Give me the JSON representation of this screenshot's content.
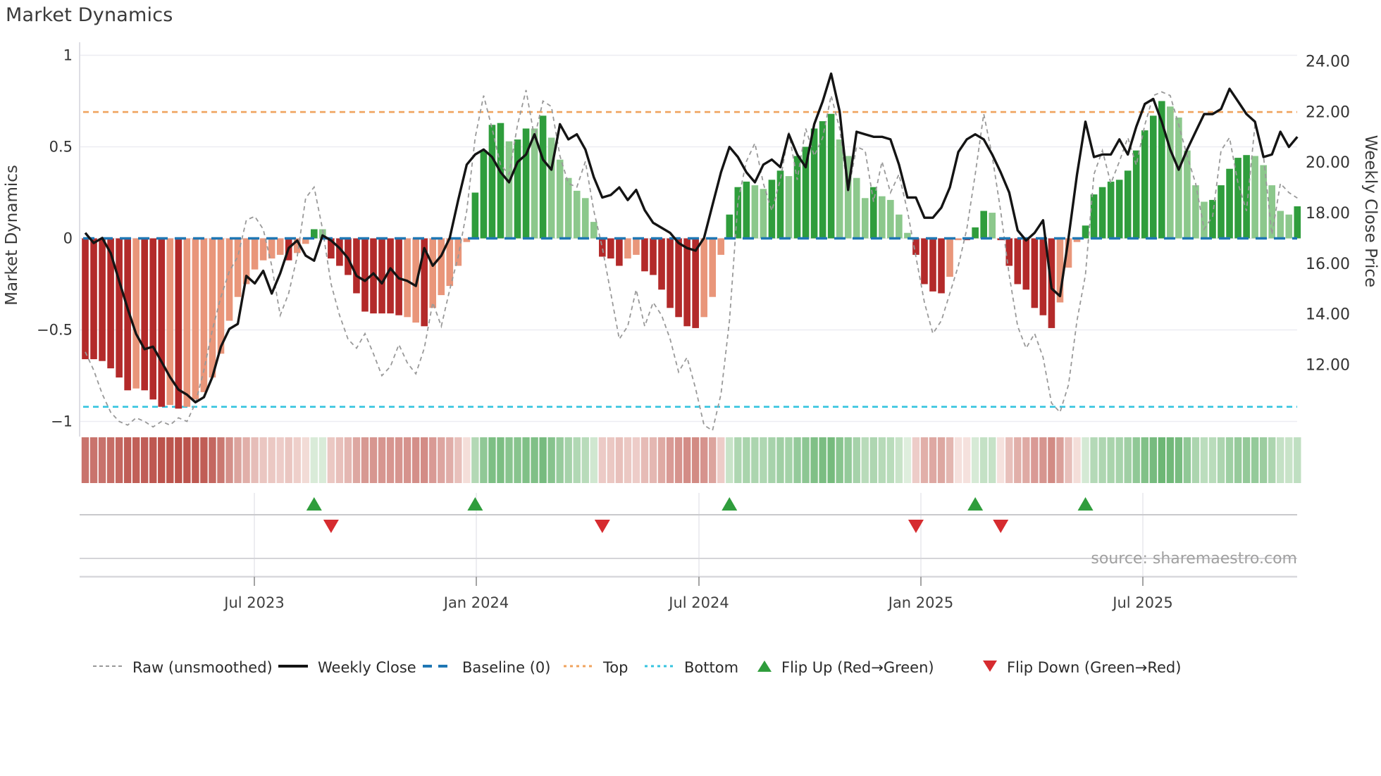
{
  "title": "Market Dynamics",
  "source": "source: sharemaestro.com",
  "axes": {
    "left": {
      "label": "Market Dynamics",
      "ticks": [
        "1",
        "0.5",
        "0",
        "−0.5",
        "−1"
      ],
      "tick_values": [
        1,
        0.5,
        0,
        -0.5,
        -1
      ]
    },
    "right": {
      "label": "Weekly Close Price",
      "ticks": [
        "24.00",
        "22.00",
        "20.00",
        "18.00",
        "16.00",
        "14.00",
        "12.00"
      ],
      "tick_values": [
        24,
        22,
        20,
        18,
        16,
        14,
        12
      ]
    },
    "x": {
      "ticks": [
        "Jul 2023",
        "Jan 2024",
        "Jul 2024",
        "Jan 2025",
        "Jul 2025"
      ]
    }
  },
  "legend": {
    "items": [
      {
        "label": "Raw (unsmoothed)",
        "marker": "dashed-gray-line"
      },
      {
        "label": "Weekly Close",
        "marker": "solid-black-line"
      },
      {
        "label": "Baseline (0)",
        "marker": "blue-dashes"
      },
      {
        "label": "Top",
        "marker": "orange-dots"
      },
      {
        "label": "Bottom",
        "marker": "cyan-dots"
      },
      {
        "label": "Flip Up (Red→Green)",
        "marker": "green-triangle-up"
      },
      {
        "label": "Flip Down (Green→Red)",
        "marker": "red-triangle-down"
      }
    ]
  },
  "colors": {
    "bar_dark_red": "#B32A2A",
    "bar_salmon": "#E9967A",
    "bar_dark_green": "#2F9D3C",
    "bar_light_green": "#8CC88C",
    "price_line": "#141414",
    "raw_line": "#999999",
    "baseline": "#1F77B4",
    "top_line": "#F0A35E",
    "bottom_line": "#35C4DF",
    "flip_up": "#2F9D3C",
    "flip_down": "#D62B2F",
    "grid": "#ECECF2",
    "panel_line": "#C9C9CC",
    "text_dark": "#3a3a3a",
    "text_tick": "#333333",
    "text_source": "#A0A0A0"
  },
  "chart_data": {
    "type": "bar",
    "title": "Market Dynamics",
    "x_label": "",
    "y_left_label": "Market Dynamics",
    "y_right_label": "Weekly Close Price",
    "left_ylim": [
      -1.08,
      1.08
    ],
    "right_ylim": [
      9.6,
      24.6
    ],
    "baseline": 0,
    "top_threshold": 0.69,
    "bottom_threshold": -0.92,
    "grid": true,
    "legend_position": "bottom",
    "x_tick_labels": [
      "Jul 2023",
      "Jan 2024",
      "Jul 2024",
      "Jan 2025",
      "Jul 2025"
    ],
    "x_dates": [
      "2023-02-13",
      "2023-02-20",
      "2023-02-27",
      "2023-03-06",
      "2023-03-13",
      "2023-03-20",
      "2023-03-27",
      "2023-04-03",
      "2023-04-10",
      "2023-04-17",
      "2023-04-24",
      "2023-05-01",
      "2023-05-08",
      "2023-05-15",
      "2023-05-22",
      "2023-05-29",
      "2023-06-05",
      "2023-06-12",
      "2023-06-19",
      "2023-06-26",
      "2023-07-03",
      "2023-07-10",
      "2023-07-17",
      "2023-07-24",
      "2023-07-31",
      "2023-08-07",
      "2023-08-14",
      "2023-08-21",
      "2023-08-28",
      "2023-09-04",
      "2023-09-11",
      "2023-09-18",
      "2023-09-25",
      "2023-10-02",
      "2023-10-09",
      "2023-10-16",
      "2023-10-23",
      "2023-10-30",
      "2023-11-06",
      "2023-11-13",
      "2023-11-20",
      "2023-11-27",
      "2023-12-04",
      "2023-12-11",
      "2023-12-18",
      "2023-12-25",
      "2024-01-01",
      "2024-01-08",
      "2024-01-15",
      "2024-01-22",
      "2024-01-29",
      "2024-02-05",
      "2024-02-12",
      "2024-02-19",
      "2024-02-26",
      "2024-03-04",
      "2024-03-11",
      "2024-03-18",
      "2024-03-25",
      "2024-04-01",
      "2024-04-08",
      "2024-04-15",
      "2024-04-22",
      "2024-04-29",
      "2024-05-06",
      "2024-05-13",
      "2024-05-20",
      "2024-05-27",
      "2024-06-03",
      "2024-06-10",
      "2024-06-17",
      "2024-06-24",
      "2024-07-01",
      "2024-07-08",
      "2024-07-15",
      "2024-07-22",
      "2024-07-29",
      "2024-08-05",
      "2024-08-12",
      "2024-08-19",
      "2024-08-26",
      "2024-09-02",
      "2024-09-09",
      "2024-09-16",
      "2024-09-23",
      "2024-09-30",
      "2024-10-07",
      "2024-10-14",
      "2024-10-21",
      "2024-10-28",
      "2024-11-04",
      "2024-11-11",
      "2024-11-18",
      "2024-11-25",
      "2024-12-02",
      "2024-12-09",
      "2024-12-16",
      "2024-12-23",
      "2024-12-30",
      "2025-01-06",
      "2025-01-13",
      "2025-01-20",
      "2025-01-27",
      "2025-02-03",
      "2025-02-10",
      "2025-02-17",
      "2025-02-24",
      "2025-03-03",
      "2025-03-10",
      "2025-03-17",
      "2025-03-24",
      "2025-03-31",
      "2025-04-07",
      "2025-04-14",
      "2025-04-21",
      "2025-04-28",
      "2025-05-05",
      "2025-05-12",
      "2025-05-19",
      "2025-05-26",
      "2025-06-02",
      "2025-06-09",
      "2025-06-16",
      "2025-06-23",
      "2025-06-30",
      "2025-07-07",
      "2025-07-14",
      "2025-07-21",
      "2025-07-28",
      "2025-08-04",
      "2025-08-11",
      "2025-08-18",
      "2025-08-25",
      "2025-09-01",
      "2025-09-08",
      "2025-09-15",
      "2025-09-22",
      "2025-09-29",
      "2025-10-06",
      "2025-10-13",
      "2025-10-20",
      "2025-10-27",
      "2025-11-03",
      "2025-11-10"
    ],
    "series": [
      {
        "name": "Smoothed Market Dynamics (bars)",
        "type": "bar",
        "axis": "left",
        "values": [
          -0.66,
          -0.66,
          -0.67,
          -0.71,
          -0.76,
          -0.83,
          -0.82,
          -0.83,
          -0.88,
          -0.92,
          -0.91,
          -0.93,
          -0.92,
          -0.88,
          -0.84,
          -0.76,
          -0.63,
          -0.45,
          -0.32,
          -0.25,
          -0.17,
          -0.12,
          -0.11,
          -0.09,
          -0.12,
          -0.08,
          -0.03,
          0.05,
          0.05,
          -0.11,
          -0.15,
          -0.2,
          -0.3,
          -0.4,
          -0.41,
          -0.41,
          -0.41,
          -0.42,
          -0.43,
          -0.46,
          -0.48,
          -0.38,
          -0.31,
          -0.26,
          -0.15,
          -0.02,
          0.25,
          0.48,
          0.62,
          0.63,
          0.53,
          0.54,
          0.6,
          0.6,
          0.67,
          0.55,
          0.43,
          0.33,
          0.26,
          0.22,
          0.09,
          -0.1,
          -0.11,
          -0.15,
          -0.11,
          -0.09,
          -0.18,
          -0.2,
          -0.28,
          -0.38,
          -0.43,
          -0.48,
          -0.49,
          -0.43,
          -0.32,
          -0.09,
          0.13,
          0.28,
          0.31,
          0.29,
          0.27,
          0.32,
          0.37,
          0.34,
          0.45,
          0.5,
          0.6,
          0.64,
          0.68,
          0.54,
          0.45,
          0.33,
          0.22,
          0.28,
          0.23,
          0.21,
          0.13,
          0.03,
          -0.09,
          -0.25,
          -0.29,
          -0.3,
          -0.21,
          -0.01,
          -0.01,
          0.06,
          0.15,
          0.14,
          -0.01,
          -0.15,
          -0.25,
          -0.28,
          -0.38,
          -0.42,
          -0.49,
          -0.35,
          -0.16,
          -0.02,
          0.07,
          0.24,
          0.28,
          0.31,
          0.32,
          0.37,
          0.48,
          0.59,
          0.67,
          0.75,
          0.72,
          0.66,
          0.48,
          0.29,
          0.2,
          0.21,
          0.29,
          0.38,
          0.44,
          0.455,
          0.45,
          0.4,
          0.29,
          0.15,
          0.13,
          0.175
        ]
      },
      {
        "name": "Raw (unsmoothed)",
        "type": "line",
        "axis": "left",
        "values": [
          -0.62,
          -0.72,
          -0.85,
          -0.95,
          -1.0,
          -1.02,
          -0.98,
          -1.0,
          -1.03,
          -1.0,
          -1.02,
          -0.98,
          -1.0,
          -0.9,
          -0.72,
          -0.5,
          -0.32,
          -0.18,
          -0.1,
          0.1,
          0.12,
          0.05,
          -0.15,
          -0.42,
          -0.3,
          -0.1,
          0.22,
          0.28,
          0.05,
          -0.25,
          -0.42,
          -0.55,
          -0.6,
          -0.52,
          -0.63,
          -0.75,
          -0.7,
          -0.58,
          -0.68,
          -0.74,
          -0.6,
          -0.35,
          -0.48,
          -0.28,
          -0.1,
          0.15,
          0.55,
          0.78,
          0.6,
          0.4,
          0.35,
          0.62,
          0.81,
          0.55,
          0.75,
          0.72,
          0.45,
          0.3,
          0.28,
          0.42,
          0.15,
          -0.05,
          -0.3,
          -0.55,
          -0.48,
          -0.28,
          -0.48,
          -0.35,
          -0.42,
          -0.55,
          -0.73,
          -0.65,
          -0.82,
          -1.02,
          -1.05,
          -0.85,
          -0.45,
          0.2,
          0.42,
          0.52,
          0.3,
          0.15,
          0.32,
          0.58,
          0.32,
          0.6,
          0.45,
          0.55,
          0.78,
          0.6,
          0.25,
          0.5,
          0.48,
          0.2,
          0.42,
          0.25,
          0.35,
          0.15,
          -0.1,
          -0.35,
          -0.52,
          -0.45,
          -0.3,
          -0.15,
          0.05,
          0.35,
          0.68,
          0.45,
          0.15,
          -0.2,
          -0.48,
          -0.6,
          -0.52,
          -0.65,
          -0.9,
          -0.95,
          -0.8,
          -0.45,
          -0.2,
          0.35,
          0.48,
          0.3,
          0.42,
          0.55,
          0.4,
          0.62,
          0.78,
          0.8,
          0.78,
          0.62,
          0.45,
          0.3,
          0.05,
          0.12,
          0.48,
          0.55,
          0.3,
          0.15,
          0.62,
          0.45,
          0.02,
          0.3,
          0.25,
          0.22
        ]
      },
      {
        "name": "Weekly Close",
        "type": "line",
        "axis": "right",
        "values": [
          17.2,
          16.8,
          17.0,
          16.4,
          15.3,
          14.2,
          13.2,
          12.6,
          12.7,
          12.1,
          11.5,
          11.0,
          10.8,
          10.5,
          10.7,
          11.5,
          12.7,
          13.4,
          13.6,
          15.5,
          15.2,
          15.7,
          14.8,
          15.6,
          16.6,
          16.9,
          16.3,
          16.1,
          17.1,
          16.9,
          16.6,
          16.2,
          15.5,
          15.3,
          15.6,
          15.2,
          15.8,
          15.4,
          15.3,
          15.1,
          16.6,
          15.9,
          16.3,
          17.0,
          18.5,
          19.9,
          20.3,
          20.5,
          20.2,
          19.6,
          19.2,
          20.0,
          20.3,
          21.1,
          20.1,
          19.7,
          21.5,
          20.9,
          21.1,
          20.5,
          19.4,
          18.6,
          18.7,
          19.0,
          18.5,
          18.9,
          18.1,
          17.6,
          17.4,
          17.2,
          16.8,
          16.6,
          16.5,
          17.0,
          18.3,
          19.6,
          20.6,
          20.2,
          19.6,
          19.2,
          19.9,
          20.1,
          19.8,
          21.1,
          20.3,
          19.8,
          21.5,
          22.4,
          23.5,
          22.0,
          18.9,
          21.2,
          21.1,
          21.0,
          21.0,
          20.9,
          19.9,
          18.6,
          18.6,
          17.8,
          17.8,
          18.2,
          19.0,
          20.4,
          20.9,
          21.1,
          20.9,
          20.3,
          19.6,
          18.8,
          17.3,
          16.9,
          17.2,
          17.7,
          15.0,
          14.7,
          17.0,
          19.5,
          21.6,
          20.2,
          20.3,
          20.3,
          20.9,
          20.3,
          21.4,
          22.3,
          22.5,
          21.6,
          20.5,
          19.7,
          20.5,
          21.2,
          21.9,
          21.9,
          22.1,
          22.9,
          22.4,
          21.9,
          21.6,
          20.2,
          20.3,
          21.2,
          20.6,
          21.0
        ]
      }
    ],
    "heatmap_strip": "weekly smoothed values repeated as a red-green color strip below the main chart",
    "flip_up_dates": [
      "2023-08-21",
      "2024-01-01",
      "2024-07-29",
      "2025-02-17",
      "2025-05-19"
    ],
    "flip_down_dates": [
      "2023-09-04",
      "2024-04-15",
      "2024-12-30",
      "2025-03-10"
    ],
    "shade_overrides": {
      "38": "light",
      "39": "light",
      "53": "light"
    }
  }
}
